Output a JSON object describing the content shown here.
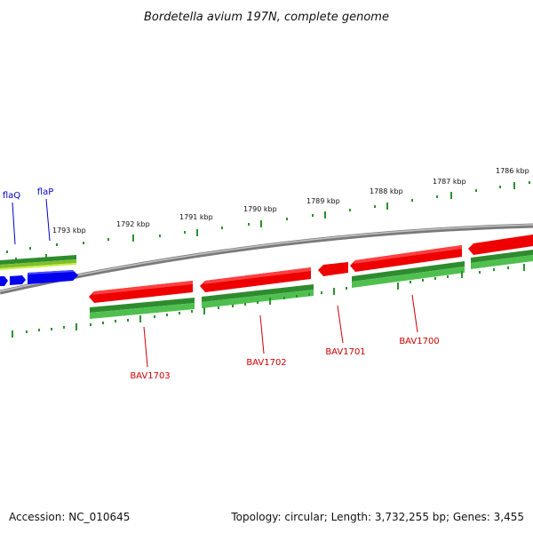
{
  "title": "Bordetella avium 197N, complete genome",
  "footer": {
    "accession": "Accession: NC_010645",
    "topology": "Topology: circular; Length: 3,732,255 bp; Genes: 3,455"
  },
  "colors": {
    "background": "#ffffff",
    "backbone": "#8a8a8a",
    "red_gene": "#ee0000",
    "blue_gene": "#0000ee",
    "green_track": "#2e8b2e",
    "light_green_track": "#9acd32",
    "tick": "#2f8f2f",
    "red_label": "#cc0000",
    "blue_label": "#0000cc"
  },
  "ruler_labels": [
    "1793 kbp",
    "1792 kbp",
    "1791 kbp",
    "1790 kbp",
    "1789 kbp",
    "1788 kbp",
    "1787 kbp",
    "1786 kbp"
  ],
  "gene_labels": [
    {
      "text": "BAV1703",
      "color": "red"
    },
    {
      "text": "BAV1702",
      "color": "red"
    },
    {
      "text": "BAV1701",
      "color": "red"
    },
    {
      "text": "BAV1700",
      "color": "red"
    },
    {
      "text": "flaQ",
      "color": "blue"
    },
    {
      "text": "flaP",
      "color": "blue"
    }
  ]
}
